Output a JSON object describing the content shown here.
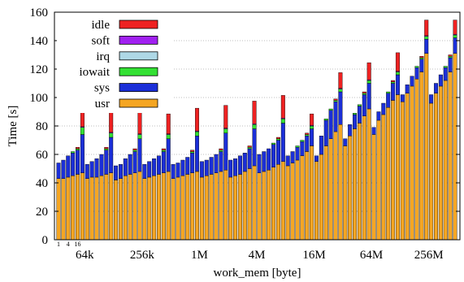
{
  "chart_data": {
    "type": "bar",
    "stacked": true,
    "xlabel": "work_mem [byte]",
    "ylabel": "Time [s]",
    "ylim": [
      0,
      160
    ],
    "yticks": [
      0,
      20,
      40,
      60,
      80,
      100,
      120,
      140,
      160
    ],
    "grid": true,
    "legend_position": "top-left",
    "groups": [
      "64k",
      "256k",
      "1M",
      "4M",
      "16M",
      "64M",
      "256M"
    ],
    "sub_labels": [
      "1",
      "4",
      "16"
    ],
    "bars_per_group": 6,
    "stack_order": [
      "usr",
      "sys",
      "iowait",
      "irq",
      "soft",
      "idle"
    ],
    "legend_order": [
      "idle",
      "soft",
      "irq",
      "iowait",
      "sys",
      "usr"
    ],
    "colors": {
      "usr": "#f5a623",
      "sys": "#1b2fd8",
      "iowait": "#33e033",
      "irq": "#aed8e6",
      "soft": "#a020f0",
      "idle": "#ee2222"
    },
    "series": [
      {
        "name": "usr",
        "values": [
          [
            43,
            43,
            44,
            45,
            46,
            47
          ],
          [
            43,
            44,
            44,
            45,
            46,
            47
          ],
          [
            42,
            43,
            45,
            46,
            47,
            48
          ],
          [
            43,
            44,
            45,
            46,
            47,
            48
          ],
          [
            43,
            44,
            45,
            46,
            47,
            48
          ],
          [
            44,
            45,
            46,
            47,
            48,
            49
          ],
          [
            44,
            45,
            46,
            48,
            50,
            52
          ],
          [
            47,
            48,
            49,
            51,
            53,
            55
          ],
          [
            52,
            54,
            56,
            59,
            62,
            66
          ],
          [
            55,
            60,
            66,
            71,
            76,
            81
          ],
          [
            66,
            73,
            78,
            82,
            87,
            92
          ],
          [
            74,
            84,
            88,
            93,
            98,
            102
          ],
          [
            97,
            103,
            108,
            113,
            118,
            131
          ],
          [
            96,
            103,
            108,
            112,
            118,
            131
          ]
        ]
      },
      {
        "name": "sys",
        "values": [
          [
            11,
            13,
            15,
            16,
            17,
            27
          ],
          [
            10,
            11,
            13,
            15,
            17,
            25
          ],
          [
            10,
            10,
            12,
            14,
            15,
            23
          ],
          [
            10,
            11,
            12,
            13,
            15,
            23
          ],
          [
            10,
            10,
            11,
            12,
            14,
            25
          ],
          [
            11,
            11,
            12,
            13,
            14,
            26
          ],
          [
            12,
            12,
            13,
            13,
            14,
            26
          ],
          [
            13,
            14,
            15,
            16,
            17,
            27
          ],
          [
            7,
            8,
            9,
            10,
            11,
            12
          ],
          [
            4,
            13,
            18,
            20,
            21,
            23
          ],
          [
            5,
            8,
            10,
            12,
            15,
            18
          ],
          [
            5,
            6,
            8,
            10,
            12,
            14
          ],
          [
            5,
            6,
            7,
            8,
            9,
            10
          ],
          [
            6,
            7,
            8,
            9,
            10,
            11
          ]
        ]
      },
      {
        "name": "iowait",
        "values": [
          [
            0,
            0,
            0,
            1,
            1,
            5
          ],
          [
            0,
            0,
            0,
            0,
            1,
            3
          ],
          [
            0,
            0,
            0,
            0,
            1,
            3
          ],
          [
            0,
            0,
            0,
            0,
            1,
            3
          ],
          [
            0,
            0,
            0,
            0,
            1,
            3
          ],
          [
            0,
            0,
            0,
            0,
            1,
            3
          ],
          [
            0,
            0,
            0,
            0,
            1,
            3
          ],
          [
            0,
            0,
            0,
            1,
            1,
            3
          ],
          [
            0,
            0,
            1,
            1,
            1,
            2
          ],
          [
            0,
            0,
            1,
            1,
            1,
            2
          ],
          [
            0,
            0,
            1,
            1,
            1,
            2
          ],
          [
            0,
            0,
            0,
            1,
            1,
            2
          ],
          [
            0,
            0,
            0,
            1,
            1,
            2
          ],
          [
            0,
            0,
            0,
            1,
            1,
            2
          ]
        ]
      },
      {
        "name": "irq",
        "values": [
          [
            0,
            0,
            0,
            0,
            0,
            0
          ],
          [
            0,
            0,
            0,
            0,
            0,
            0
          ],
          [
            0,
            0,
            0,
            0,
            0,
            0
          ],
          [
            0,
            0,
            0,
            0,
            0,
            0
          ],
          [
            0,
            0,
            0,
            0,
            0,
            0
          ],
          [
            0,
            0,
            0,
            0,
            0,
            0
          ],
          [
            0,
            0,
            0,
            0,
            0,
            0
          ],
          [
            0,
            0,
            0,
            0,
            0,
            0
          ],
          [
            0,
            0,
            0,
            0,
            0,
            0
          ],
          [
            0,
            0,
            0,
            0,
            0,
            0
          ],
          [
            0,
            0,
            0,
            0,
            0,
            0
          ],
          [
            0,
            0,
            0,
            0,
            0,
            0
          ],
          [
            0,
            0,
            0,
            0,
            0,
            0
          ],
          [
            0,
            0,
            0,
            0,
            0,
            0
          ]
        ]
      },
      {
        "name": "soft",
        "values": [
          [
            0,
            0,
            0,
            0,
            0,
            0.5
          ],
          [
            0,
            0,
            0,
            0,
            0,
            0.5
          ],
          [
            0,
            0,
            0,
            0,
            0,
            0.5
          ],
          [
            0,
            0,
            0,
            0,
            0,
            0.5
          ],
          [
            0,
            0,
            0,
            0,
            0,
            0.5
          ],
          [
            0,
            0,
            0,
            0,
            0,
            0.5
          ],
          [
            0,
            0,
            0,
            0,
            0,
            0.5
          ],
          [
            0,
            0,
            0,
            0,
            0,
            0.5
          ],
          [
            0,
            0,
            0,
            0,
            0,
            0.5
          ],
          [
            0,
            0,
            0,
            0,
            0,
            0.5
          ],
          [
            0,
            0,
            0,
            0,
            0,
            0.5
          ],
          [
            0,
            0,
            0,
            0,
            0,
            0.5
          ],
          [
            0,
            0,
            0,
            0,
            0,
            0.5
          ],
          [
            0,
            0,
            0,
            0,
            0,
            0.5
          ]
        ]
      },
      {
        "name": "idle",
        "values": [
          [
            0,
            0,
            0,
            0,
            1,
            12
          ],
          [
            0,
            0,
            0,
            0,
            1,
            14
          ],
          [
            0,
            0,
            0,
            0,
            1,
            15
          ],
          [
            0,
            0,
            0,
            0,
            1,
            14
          ],
          [
            0,
            0,
            0,
            0,
            1,
            16
          ],
          [
            0,
            0,
            0,
            0,
            1,
            16
          ],
          [
            0,
            0,
            0,
            0,
            1,
            16
          ],
          [
            0,
            0,
            0,
            0,
            1,
            16
          ],
          [
            0,
            0,
            0,
            0,
            1,
            8
          ],
          [
            0,
            0,
            0,
            0,
            1,
            11
          ],
          [
            0,
            0,
            0,
            0,
            1,
            12
          ],
          [
            0,
            0,
            0,
            0,
            1,
            13
          ],
          [
            0,
            0,
            0,
            0,
            1,
            11
          ],
          [
            0,
            0,
            0,
            0,
            1,
            10
          ]
        ]
      }
    ]
  }
}
